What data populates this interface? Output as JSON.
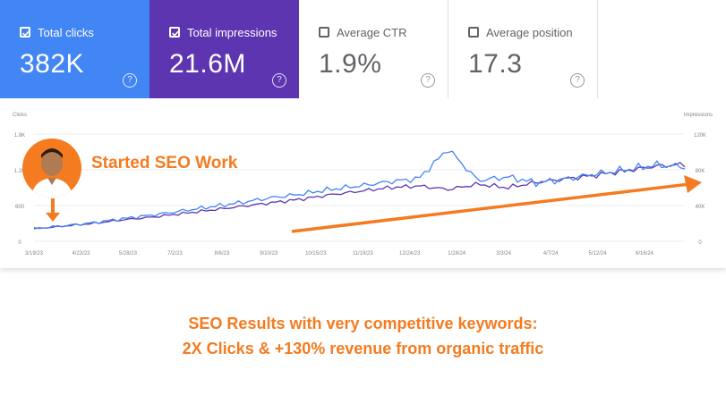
{
  "metrics": [
    {
      "label": "Total clicks",
      "value": "382K",
      "checked": true,
      "color": "#4285f4"
    },
    {
      "label": "Total impressions",
      "value": "21.6M",
      "checked": true,
      "color": "#5e35b1"
    },
    {
      "label": "Average CTR",
      "value": "1.9%",
      "checked": false
    },
    {
      "label": "Average position",
      "value": "17.3",
      "checked": false
    }
  ],
  "help_glyph": "?",
  "annotation": {
    "text": "Started SEO Work",
    "color": "#f47b20"
  },
  "caption": {
    "line1": "SEO Results with very competitive keywords:",
    "line2": "2X Clicks & +130% revenue from organic traffic"
  },
  "chart_data": {
    "type": "line",
    "left_axis": {
      "label": "Clicks",
      "ticks": [
        "1.8K",
        "1.2K",
        "600",
        "0"
      ],
      "range": [
        0,
        1800
      ]
    },
    "right_axis": {
      "label": "Impressions",
      "ticks": [
        "120K",
        "80K",
        "40K",
        "0"
      ],
      "range": [
        0,
        120000
      ]
    },
    "x_ticks": [
      "3/19/23",
      "4/23/23",
      "5/28/23",
      "7/2/23",
      "8/6/23",
      "9/10/23",
      "10/15/23",
      "11/19/23",
      "12/24/23",
      "1/28/24",
      "3/3/24",
      "4/7/24",
      "5/12/24",
      "6/16/24"
    ],
    "series": [
      {
        "color": "#5e35b1",
        "axis": "right",
        "values": [
          14000,
          17000,
          20000,
          24000,
          27000,
          31000,
          35000,
          39000,
          43000,
          47000,
          52000,
          56000,
          60000,
          62000,
          58000,
          64000,
          60000,
          66000,
          70000,
          74000,
          79000,
          84000,
          86000
        ]
      },
      {
        "color": "#4285f4",
        "axis": "left",
        "values": [
          210,
          260,
          310,
          380,
          440,
          510,
          580,
          650,
          730,
          790,
          870,
          930,
          1000,
          1050,
          1550,
          1020,
          1080,
          980,
          1050,
          1130,
          1200,
          1280,
          1250
        ]
      }
    ],
    "trend_arrow_color": "#f47b20"
  }
}
